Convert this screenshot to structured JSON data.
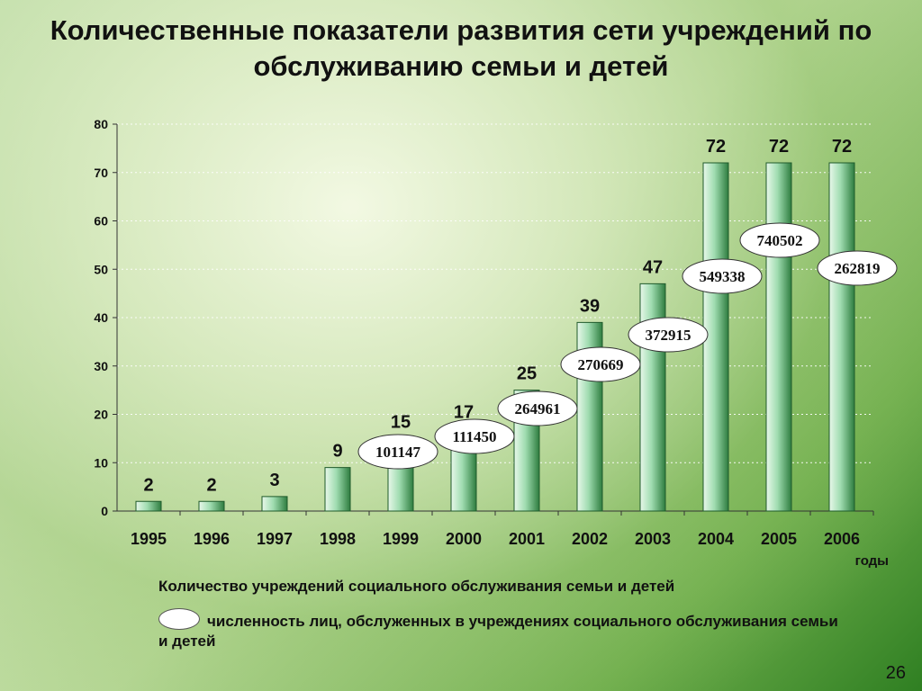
{
  "title": "Количественные показатели развития сети учреждений по обслуживанию семьи и детей",
  "page_number": "26",
  "legend": {
    "series1": "Количество учреждений социального обслуживания семьи и детей",
    "series2": "численность лиц, обслуженных в учреждениях социального обслуживания семьи и детей"
  },
  "colors": {
    "bar_light": "#e8f8ea",
    "bar_mid": "#9fdcb0",
    "bar_dark": "#2e7d3f"
  },
  "chart_data": {
    "type": "bar",
    "categories": [
      "1995",
      "1996",
      "1997",
      "1998",
      "1999",
      "2000",
      "2001",
      "2002",
      "2003",
      "2004",
      "2005",
      "2006"
    ],
    "xlabel": "годы",
    "ylabel": "",
    "ylim": [
      0,
      80
    ],
    "yticks": [
      0,
      10,
      20,
      30,
      40,
      50,
      60,
      70,
      80
    ],
    "grid": true,
    "series": [
      {
        "name": "Количество учреждений социального обслуживания семьи и детей",
        "values": [
          2,
          2,
          3,
          9,
          15,
          17,
          25,
          39,
          47,
          72,
          72,
          72
        ]
      },
      {
        "name": "численность лиц, обслуженных в учреждениях социального обслуживания семьи и детей",
        "values": [
          null,
          null,
          null,
          null,
          101147,
          111450,
          264961,
          270669,
          372915,
          549338,
          740502,
          262819
        ]
      }
    ]
  }
}
